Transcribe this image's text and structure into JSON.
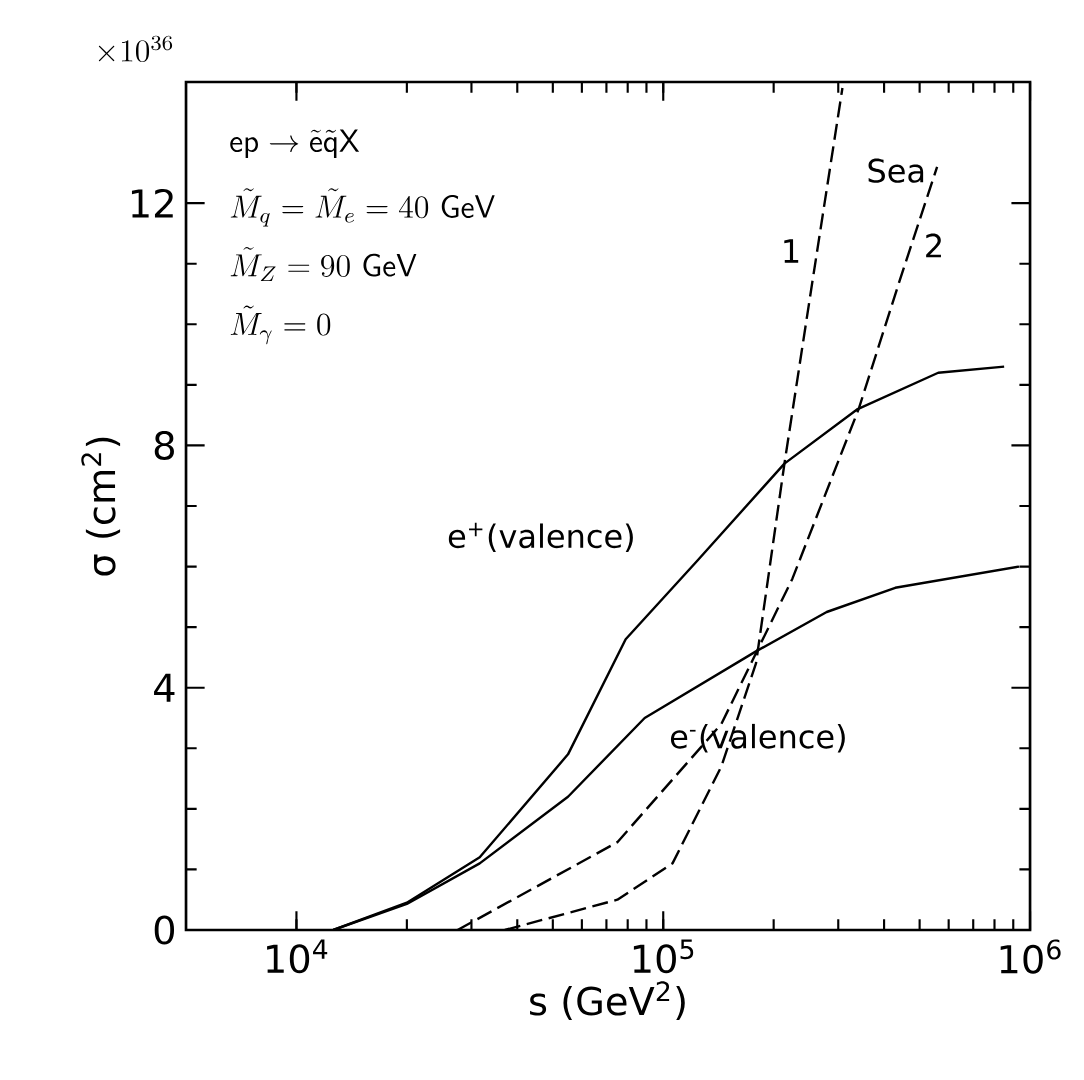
{
  "chart_data": {
    "type": "line",
    "xlabel": "s      (GeV$^{2}$)",
    "ylabel": "σ      (cm$^{2}$)",
    "log": "x",
    "xlim": [
      5000,
      1000000
    ],
    "ylim": [
      0,
      14
    ],
    "xticks": [
      {
        "value": 10000,
        "label": "10$^{4}$"
      },
      {
        "value": 100000,
        "label": "10$^{5}$"
      },
      {
        "value": 1000000,
        "label": "10$^{6}$"
      }
    ],
    "yticks": [
      0,
      4,
      8,
      12
    ],
    "marker": "none",
    "annotations": [
      "\\times 10^{36}",
      "\\mathsf{ep}\\rightarrow\\tilde{\\mathsf{e}}\\tilde{\\mathsf{q}}\\mathsf{X}",
      "\\tilde{M}_{q}=\\tilde{M}_{e}=40\\ \\mathsf{GeV}",
      "\\tilde{M}_{Z}=90\\ \\mathsf{GeV}",
      "\\tilde{M}_{\\gamma}=0",
      "Sea"
    ],
    "series": [
      {
        "name": "e$^{+}$(valence)",
        "color": "#000000",
        "line_style": "solid",
        "x": [
          12600,
          20000,
          31600,
          55000,
          79000,
          124000,
          214000,
          339000,
          562000,
          850000
        ],
        "values": [
          0,
          0.45,
          1.2,
          2.9,
          4.8,
          6.1,
          7.7,
          8.6,
          9.2,
          9.3
        ]
      },
      {
        "name": "e$^{-}$(valence)",
        "color": "#000000",
        "line_style": "solid",
        "x": [
          12600,
          20000,
          31600,
          55000,
          89000,
          179000,
          279000,
          429000,
          933000
        ],
        "values": [
          0,
          0.43,
          1.1,
          2.2,
          3.5,
          4.6,
          5.25,
          5.65,
          6.0
        ]
      },
      {
        "name": "1",
        "color": "#000000",
        "line_style": "dashed",
        "x": [
          37000,
          75000,
          106000,
          144000,
          179000,
          214000,
          255000,
          308000
        ],
        "values": [
          0,
          0.5,
          1.1,
          2.7,
          4.4,
          7.7,
          10.7,
          13.9
        ]
      },
      {
        "name": "2",
        "color": "#000000",
        "line_style": "dashed",
        "x": [
          27500,
          75000,
          144000,
          225000,
          341000,
          440000,
          558000
        ],
        "values": [
          0,
          1.45,
          3.4,
          5.8,
          8.6,
          10.7,
          12.6
        ]
      }
    ]
  }
}
